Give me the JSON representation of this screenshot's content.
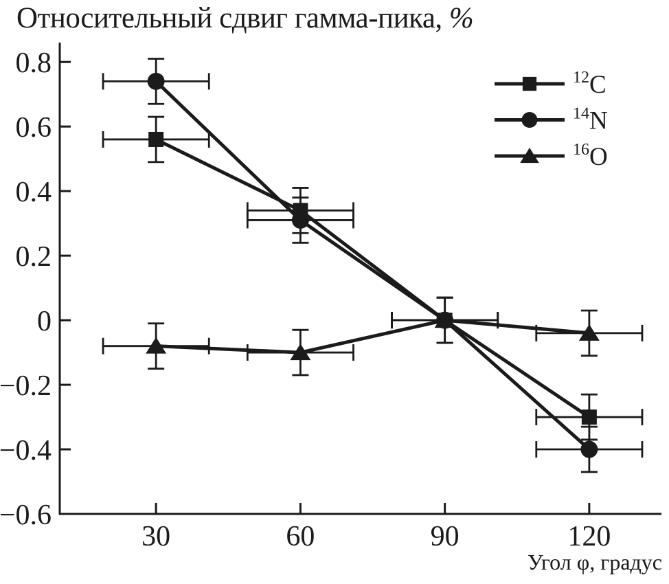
{
  "title": {
    "main": "Относительный сдвиг гамма-пика,",
    "unit": "%"
  },
  "xlabel": {
    "prefix": "Угол ",
    "phi": "φ",
    "suffix": ", градус"
  },
  "chart_data": {
    "type": "line",
    "title": "Относительный сдвиг гамма-пика, %",
    "xlabel": "Угол φ, градус",
    "ylabel": "Относительный сдвиг гамма-пика, %",
    "x": [
      30,
      60,
      90,
      120
    ],
    "x_error": 11,
    "series": [
      {
        "name": "12C",
        "mass": "12",
        "element": "C",
        "marker": "square",
        "values": [
          0.56,
          0.34,
          0.0,
          -0.3
        ],
        "y_error": 0.07
      },
      {
        "name": "14N",
        "mass": "14",
        "element": "N",
        "marker": "circle",
        "values": [
          0.74,
          0.31,
          0.0,
          -0.4
        ],
        "y_error": 0.07
      },
      {
        "name": "16O",
        "mass": "16",
        "element": "O",
        "marker": "triangle",
        "values": [
          -0.08,
          -0.1,
          0.0,
          -0.04
        ],
        "y_error": 0.07
      }
    ],
    "xticks": [
      30,
      60,
      90,
      120
    ],
    "xtick_labels": [
      "30",
      "60",
      "90",
      "120"
    ],
    "yticks": [
      0.8,
      0.6,
      0.4,
      0.2,
      0,
      -0.2,
      -0.4,
      -0.6
    ],
    "ytick_labels": [
      "0.8",
      "0.6",
      "0.4",
      "0.2",
      "0",
      "−0.2",
      "−0.4",
      "−0.6"
    ],
    "xlim": [
      10,
      135
    ],
    "ylim": [
      -0.6,
      0.86
    ],
    "grid": false,
    "legend_position": "top-right",
    "color": "#1b1b1b",
    "background": "#ffffff"
  }
}
